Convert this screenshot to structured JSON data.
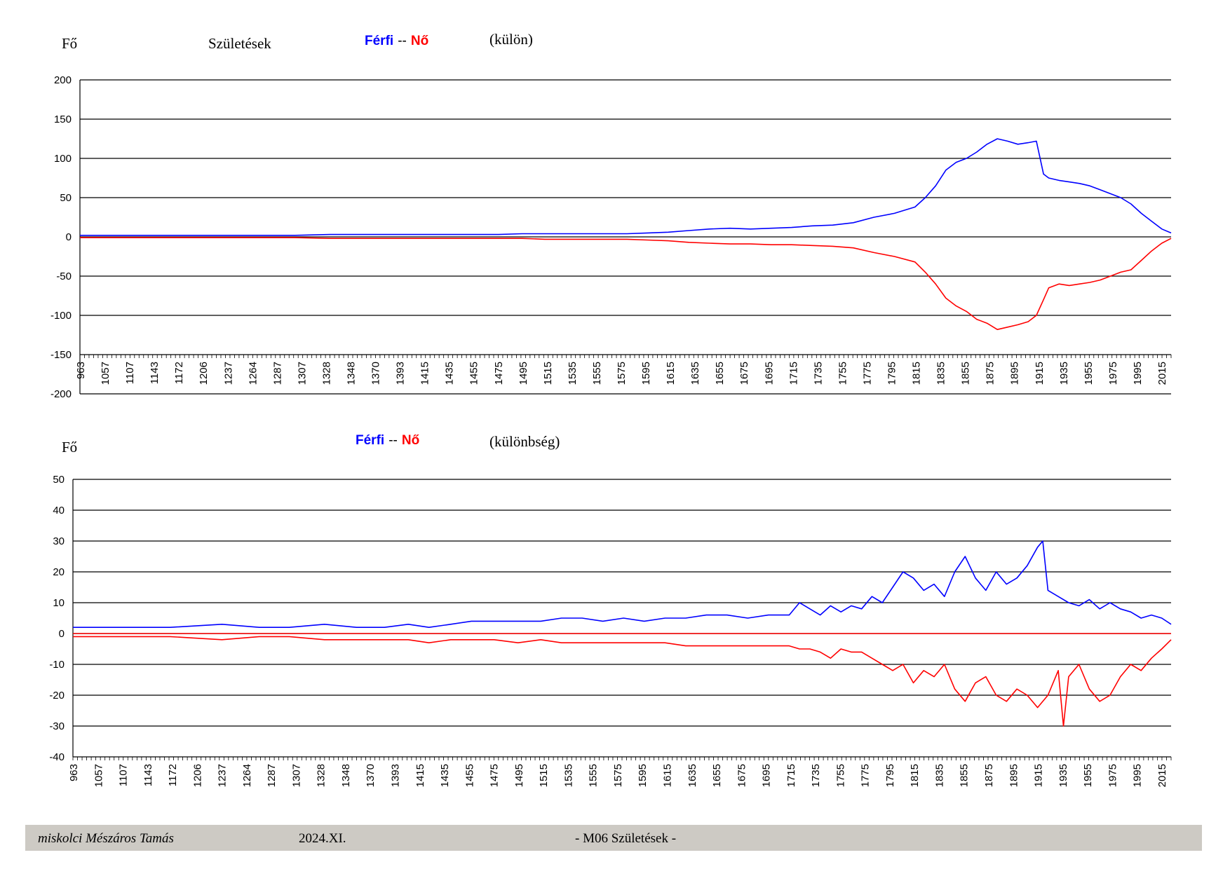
{
  "colors": {
    "male": "#0000ff",
    "female": "#ff0000",
    "grid": "#000000",
    "footer_bg": "#cdcac4"
  },
  "header1": {
    "unit": "Fő",
    "title": "Születések",
    "male": "Férfi",
    "sep": "--",
    "female": "Nő",
    "note": "(külön)"
  },
  "header2": {
    "unit": "Fő",
    "male": "Férfi",
    "sep": "--",
    "female": "Nő",
    "note": "(különbség)"
  },
  "footer": {
    "author": "miskolci Mészáros Tamás",
    "date": "2024.XI.",
    "doc": "- M06  Születések -"
  },
  "chart_data": [
    {
      "type": "line",
      "title": "Születések",
      "ylabel": "Fő",
      "ylim": [
        -200,
        200
      ],
      "yticks": [
        -200,
        -150,
        -100,
        -50,
        0,
        50,
        100,
        150,
        200
      ],
      "xlim": [
        963,
        2024
      ],
      "x_tick_labels": [
        "963",
        "1057",
        "1107",
        "1143",
        "1172",
        "1206",
        "1237",
        "1264",
        "1287",
        "1307",
        "1328",
        "1348",
        "1370",
        "1393",
        "1415",
        "1435",
        "1455",
        "1475",
        "1495",
        "1515",
        "1535",
        "1555",
        "1575",
        "1595",
        "1615",
        "1635",
        "1655",
        "1675",
        "1695",
        "1715",
        "1735",
        "1755",
        "1775",
        "1795",
        "1815",
        "1835",
        "1855",
        "1875",
        "1895",
        "1915",
        "1935",
        "1955",
        "1975",
        "1995",
        "2015"
      ],
      "grid": true,
      "series": [
        {
          "name": "Férfi",
          "color": "#0000ff",
          "x": [
            963,
            1057,
            1107,
            1143,
            1172,
            1206,
            1237,
            1264,
            1287,
            1307,
            1328,
            1348,
            1370,
            1393,
            1415,
            1435,
            1455,
            1475,
            1495,
            1515,
            1535,
            1555,
            1575,
            1595,
            1615,
            1635,
            1655,
            1675,
            1695,
            1715,
            1735,
            1755,
            1775,
            1785,
            1795,
            1805,
            1815,
            1825,
            1835,
            1845,
            1855,
            1865,
            1875,
            1885,
            1893,
            1900,
            1905,
            1915,
            1925,
            1935,
            1945,
            1955,
            1965,
            1975,
            1985,
            1995,
            2005,
            2015,
            2024
          ],
          "values": [
            2,
            2,
            2,
            2,
            2,
            3,
            3,
            3,
            3,
            3,
            3,
            3,
            3,
            4,
            4,
            4,
            4,
            4,
            4,
            5,
            6,
            8,
            10,
            11,
            10,
            11,
            12,
            14,
            15,
            18,
            25,
            30,
            38,
            50,
            65,
            85,
            95,
            100,
            108,
            118,
            125,
            122,
            118,
            120,
            122,
            80,
            75,
            72,
            70,
            68,
            65,
            60,
            55,
            50,
            42,
            30,
            20,
            10,
            5
          ]
        },
        {
          "name": "Nő",
          "color": "#ff0000",
          "x": [
            963,
            1057,
            1107,
            1143,
            1172,
            1206,
            1237,
            1264,
            1287,
            1307,
            1328,
            1348,
            1370,
            1393,
            1415,
            1435,
            1455,
            1475,
            1495,
            1515,
            1535,
            1555,
            1575,
            1595,
            1615,
            1635,
            1655,
            1675,
            1695,
            1715,
            1735,
            1755,
            1775,
            1785,
            1795,
            1805,
            1815,
            1825,
            1835,
            1845,
            1855,
            1865,
            1875,
            1885,
            1893,
            1900,
            1905,
            1915,
            1925,
            1935,
            1945,
            1955,
            1965,
            1975,
            1985,
            1995,
            2005,
            2015,
            2024
          ],
          "values": [
            -1,
            -1,
            -1,
            -1,
            -1,
            -2,
            -2,
            -2,
            -2,
            -2,
            -2,
            -2,
            -2,
            -2,
            -3,
            -3,
            -3,
            -3,
            -3,
            -4,
            -5,
            -7,
            -8,
            -9,
            -9,
            -10,
            -10,
            -11,
            -12,
            -14,
            -20,
            -25,
            -32,
            -45,
            -60,
            -78,
            -88,
            -95,
            -105,
            -110,
            -118,
            -115,
            -112,
            -108,
            -100,
            -80,
            -65,
            -60,
            -62,
            -60,
            -58,
            -55,
            -50,
            -45,
            -42,
            -30,
            -18,
            -8,
            -2
          ]
        }
      ]
    },
    {
      "type": "line",
      "title": "",
      "ylabel": "Fő",
      "ylim": [
        -40,
        50
      ],
      "yticks": [
        -40,
        -30,
        -20,
        -10,
        0,
        10,
        20,
        30,
        40,
        50
      ],
      "xlim": [
        963,
        2024
      ],
      "x_tick_labels": [
        "963",
        "1057",
        "1107",
        "1143",
        "1172",
        "1206",
        "1237",
        "1264",
        "1287",
        "1307",
        "1328",
        "1348",
        "1370",
        "1393",
        "1415",
        "1435",
        "1455",
        "1475",
        "1495",
        "1515",
        "1535",
        "1555",
        "1575",
        "1595",
        "1615",
        "1635",
        "1655",
        "1675",
        "1695",
        "1715",
        "1735",
        "1755",
        "1775",
        "1795",
        "1815",
        "1835",
        "1855",
        "1875",
        "1895",
        "1915",
        "1935",
        "1955",
        "1975",
        "1995",
        "2015"
      ],
      "grid": true,
      "series": [
        {
          "name": "Férfi",
          "color": "#0000ff",
          "x": [
            963,
            1057,
            1107,
            1143,
            1172,
            1206,
            1237,
            1264,
            1287,
            1307,
            1328,
            1348,
            1370,
            1393,
            1415,
            1435,
            1455,
            1475,
            1495,
            1515,
            1535,
            1555,
            1575,
            1595,
            1615,
            1635,
            1655,
            1665,
            1675,
            1685,
            1695,
            1705,
            1715,
            1725,
            1735,
            1745,
            1755,
            1765,
            1775,
            1785,
            1795,
            1805,
            1815,
            1825,
            1835,
            1845,
            1855,
            1865,
            1875,
            1885,
            1895,
            1900,
            1905,
            1915,
            1925,
            1935,
            1945,
            1955,
            1965,
            1975,
            1985,
            1995,
            2005,
            2015,
            2024
          ],
          "values": [
            2,
            2,
            3,
            2,
            2,
            3,
            2,
            2,
            3,
            2,
            3,
            4,
            4,
            4,
            4,
            5,
            5,
            4,
            5,
            4,
            5,
            5,
            6,
            6,
            5,
            6,
            6,
            10,
            8,
            6,
            9,
            7,
            9,
            8,
            12,
            10,
            15,
            20,
            18,
            14,
            16,
            12,
            20,
            25,
            18,
            14,
            20,
            16,
            18,
            22,
            28,
            30,
            14,
            12,
            10,
            9,
            11,
            8,
            10,
            8,
            7,
            5,
            6,
            5,
            3
          ]
        },
        {
          "name": "Nő",
          "color": "#ff0000",
          "x": [
            963,
            1057,
            1107,
            1143,
            1172,
            1206,
            1237,
            1264,
            1287,
            1307,
            1328,
            1348,
            1370,
            1393,
            1415,
            1435,
            1455,
            1475,
            1495,
            1515,
            1535,
            1555,
            1575,
            1595,
            1615,
            1635,
            1655,
            1665,
            1675,
            1685,
            1695,
            1705,
            1715,
            1725,
            1735,
            1745,
            1755,
            1765,
            1775,
            1785,
            1795,
            1805,
            1815,
            1825,
            1835,
            1845,
            1855,
            1865,
            1875,
            1885,
            1895,
            1905,
            1915,
            1920,
            1925,
            1935,
            1945,
            1955,
            1965,
            1975,
            1985,
            1995,
            2005,
            2015,
            2024
          ],
          "values": [
            -1,
            -1,
            -2,
            -1,
            -1,
            -2,
            -2,
            -2,
            -2,
            -3,
            -2,
            -2,
            -2,
            -3,
            -2,
            -3,
            -3,
            -3,
            -3,
            -3,
            -3,
            -4,
            -4,
            -4,
            -4,
            -4,
            -4,
            -5,
            -5,
            -6,
            -8,
            -5,
            -6,
            -6,
            -8,
            -10,
            -12,
            -10,
            -16,
            -12,
            -14,
            -10,
            -18,
            -22,
            -16,
            -14,
            -20,
            -22,
            -18,
            -20,
            -24,
            -20,
            -12,
            -30,
            -14,
            -10,
            -18,
            -22,
            -20,
            -14,
            -10,
            -12,
            -8,
            -5,
            -2
          ]
        }
      ]
    }
  ]
}
